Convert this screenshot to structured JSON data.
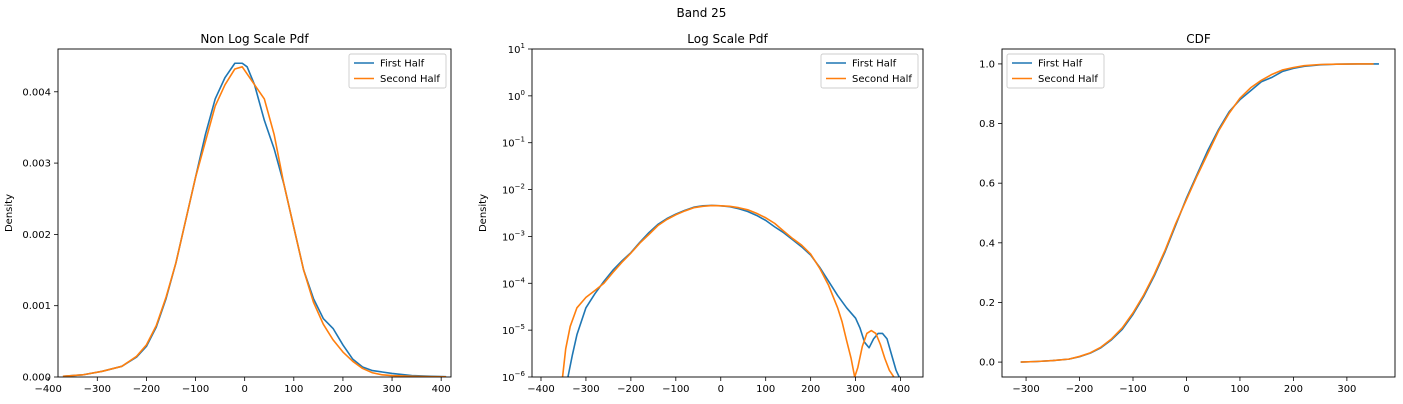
{
  "suptitle": "Band 25",
  "colors": {
    "first": "#1f77b4",
    "second": "#ff7f0e"
  },
  "chart_data": [
    {
      "type": "line",
      "title": "Non Log Scale Pdf",
      "xlabel": "",
      "ylabel": "Density",
      "xlim": [
        -380,
        420
      ],
      "ylim": [
        0,
        0.0046
      ],
      "yscale": "linear",
      "xticks": [
        -400,
        -300,
        -200,
        -100,
        0,
        100,
        200,
        300,
        400
      ],
      "yticks": [
        0.0,
        0.001,
        0.002,
        0.003,
        0.004
      ],
      "ytick_labels": [
        "0.000",
        "0.001",
        "0.002",
        "0.003",
        "0.004"
      ],
      "legend": "top-right",
      "series": [
        {
          "name": "First Half",
          "x": [
            -370,
            -330,
            -290,
            -250,
            -220,
            -200,
            -180,
            -160,
            -140,
            -120,
            -100,
            -80,
            -60,
            -40,
            -20,
            -5,
            5,
            20,
            40,
            60,
            80,
            100,
            120,
            140,
            160,
            180,
            200,
            220,
            240,
            260,
            280,
            300,
            340,
            380,
            410
          ],
          "y": [
            1e-05,
            3e-05,
            8e-05,
            0.00015,
            0.00028,
            0.00043,
            0.0007,
            0.0011,
            0.0016,
            0.0022,
            0.0028,
            0.0034,
            0.0039,
            0.0042,
            0.0044,
            0.0044,
            0.00435,
            0.0041,
            0.0036,
            0.0032,
            0.0027,
            0.0021,
            0.0015,
            0.0011,
            0.00082,
            0.00068,
            0.00045,
            0.00025,
            0.00014,
            9e-05,
            7e-05,
            5e-05,
            2e-05,
            1e-05,
            5e-06
          ]
        },
        {
          "name": "Second Half",
          "x": [
            -370,
            -330,
            -290,
            -250,
            -220,
            -200,
            -180,
            -160,
            -140,
            -120,
            -100,
            -80,
            -60,
            -40,
            -20,
            -5,
            5,
            20,
            40,
            60,
            80,
            100,
            120,
            140,
            160,
            180,
            200,
            220,
            240,
            260,
            280,
            300,
            340,
            380,
            410
          ],
          "y": [
            1e-05,
            3e-05,
            8e-05,
            0.00015,
            0.00029,
            0.00045,
            0.00072,
            0.00112,
            0.0016,
            0.0022,
            0.0028,
            0.0033,
            0.0038,
            0.0041,
            0.00432,
            0.00435,
            0.00425,
            0.0041,
            0.0039,
            0.0034,
            0.0027,
            0.0021,
            0.0015,
            0.00105,
            0.00074,
            0.00052,
            0.00035,
            0.00022,
            0.00012,
            6e-05,
            3e-05,
            2e-05,
            1e-05,
            5e-06,
            2e-06
          ]
        }
      ]
    },
    {
      "type": "line",
      "title": "Log Scale Pdf",
      "xlabel": "",
      "ylabel": "Density",
      "xlim": [
        -420,
        450
      ],
      "ylim": [
        1e-06,
        10
      ],
      "yscale": "log",
      "xticks": [
        -400,
        -300,
        -200,
        -100,
        0,
        100,
        200,
        300,
        400
      ],
      "yticks": [
        1e-06,
        1e-05,
        0.0001,
        0.001,
        0.01,
        0.1,
        1,
        10
      ],
      "ytick_labels": [
        "10^-6",
        "10^-5",
        "10^-4",
        "10^-3",
        "10^-2",
        "10^-1",
        "10^0",
        "10^1"
      ],
      "legend": "top-right",
      "series": [
        {
          "name": "First Half",
          "x": [
            -340,
            -330,
            -320,
            -300,
            -280,
            -260,
            -240,
            -220,
            -200,
            -180,
            -160,
            -140,
            -120,
            -100,
            -80,
            -60,
            -40,
            -20,
            0,
            20,
            40,
            60,
            80,
            100,
            120,
            140,
            160,
            180,
            200,
            220,
            240,
            260,
            280,
            300,
            310,
            320,
            330,
            340,
            350,
            360,
            370,
            380,
            390,
            397
          ],
          "y": [
            1e-06,
            3e-06,
            8e-06,
            3e-05,
            6e-05,
            0.00011,
            0.00019,
            0.0003,
            0.00045,
            0.00075,
            0.0012,
            0.0018,
            0.0024,
            0.003,
            0.0036,
            0.0042,
            0.0045,
            0.0046,
            0.0045,
            0.0043,
            0.0039,
            0.0034,
            0.0028,
            0.0022,
            0.0016,
            0.0012,
            0.00085,
            0.0006,
            0.0004,
            0.00022,
            0.00011,
            5.5e-05,
            3e-05,
            1.8e-05,
            1.1e-05,
            5.5e-06,
            4.2e-06,
            6.5e-06,
            8.5e-06,
            8.5e-06,
            6.5e-06,
            3e-06,
            1.4e-06,
            1e-06
          ]
        },
        {
          "name": "Second Half",
          "x": [
            -352,
            -345,
            -335,
            -320,
            -300,
            -280,
            -260,
            -240,
            -220,
            -200,
            -180,
            -160,
            -140,
            -120,
            -100,
            -80,
            -60,
            -40,
            -20,
            0,
            20,
            40,
            60,
            80,
            100,
            120,
            140,
            160,
            180,
            200,
            220,
            240,
            260,
            270,
            280,
            290,
            298,
            305,
            315,
            325,
            335,
            345,
            355,
            365,
            375,
            385
          ],
          "y": [
            1e-06,
            4e-06,
            1.2e-05,
            3e-05,
            5e-05,
            7e-05,
            0.0001,
            0.00017,
            0.00028,
            0.00044,
            0.00072,
            0.0011,
            0.0017,
            0.0023,
            0.0029,
            0.0035,
            0.0041,
            0.0044,
            0.00455,
            0.0045,
            0.0044,
            0.0041,
            0.0037,
            0.0031,
            0.0025,
            0.0019,
            0.0013,
            0.0009,
            0.00065,
            0.00042,
            0.00021,
            9e-05,
            3e-05,
            1.5e-05,
            6e-06,
            2.5e-06,
            1e-06,
            1.6e-06,
            4.5e-06,
            8.5e-06,
            9.8e-06,
            8.5e-06,
            5e-06,
            2.5e-06,
            1.4e-06,
            1e-06
          ]
        }
      ]
    },
    {
      "type": "line",
      "title": "CDF",
      "xlabel": "",
      "ylabel": "",
      "xlim": [
        -345,
        390
      ],
      "ylim": [
        -0.05,
        1.05
      ],
      "yscale": "linear",
      "xticks": [
        -300,
        -200,
        -100,
        0,
        100,
        200,
        300
      ],
      "yticks": [
        0.0,
        0.2,
        0.4,
        0.6,
        0.8,
        1.0
      ],
      "ytick_labels": [
        "0.0",
        "0.2",
        "0.4",
        "0.6",
        "0.8",
        "1.0"
      ],
      "legend": "top-left",
      "series": [
        {
          "name": "First Half",
          "x": [
            -310,
            -280,
            -250,
            -220,
            -200,
            -180,
            -160,
            -140,
            -120,
            -100,
            -80,
            -60,
            -40,
            -20,
            0,
            20,
            40,
            60,
            80,
            100,
            120,
            140,
            160,
            180,
            200,
            220,
            250,
            280,
            320,
            360
          ],
          "y": [
            0.0,
            0.002,
            0.005,
            0.01,
            0.018,
            0.03,
            0.048,
            0.075,
            0.11,
            0.16,
            0.22,
            0.29,
            0.37,
            0.46,
            0.55,
            0.63,
            0.71,
            0.78,
            0.84,
            0.88,
            0.91,
            0.94,
            0.955,
            0.975,
            0.985,
            0.992,
            0.997,
            0.999,
            1.0,
            1.0
          ]
        },
        {
          "name": "Second Half",
          "x": [
            -310,
            -280,
            -250,
            -220,
            -200,
            -180,
            -160,
            -140,
            -120,
            -100,
            -80,
            -60,
            -40,
            -20,
            0,
            20,
            40,
            60,
            80,
            100,
            120,
            140,
            160,
            180,
            200,
            220,
            250,
            280,
            320,
            350
          ],
          "y": [
            0.0,
            0.002,
            0.005,
            0.01,
            0.019,
            0.031,
            0.05,
            0.078,
            0.115,
            0.165,
            0.225,
            0.295,
            0.375,
            0.465,
            0.545,
            0.625,
            0.7,
            0.775,
            0.835,
            0.885,
            0.92,
            0.945,
            0.965,
            0.98,
            0.988,
            0.994,
            0.998,
            0.999,
            1.0,
            1.0
          ]
        }
      ]
    }
  ]
}
